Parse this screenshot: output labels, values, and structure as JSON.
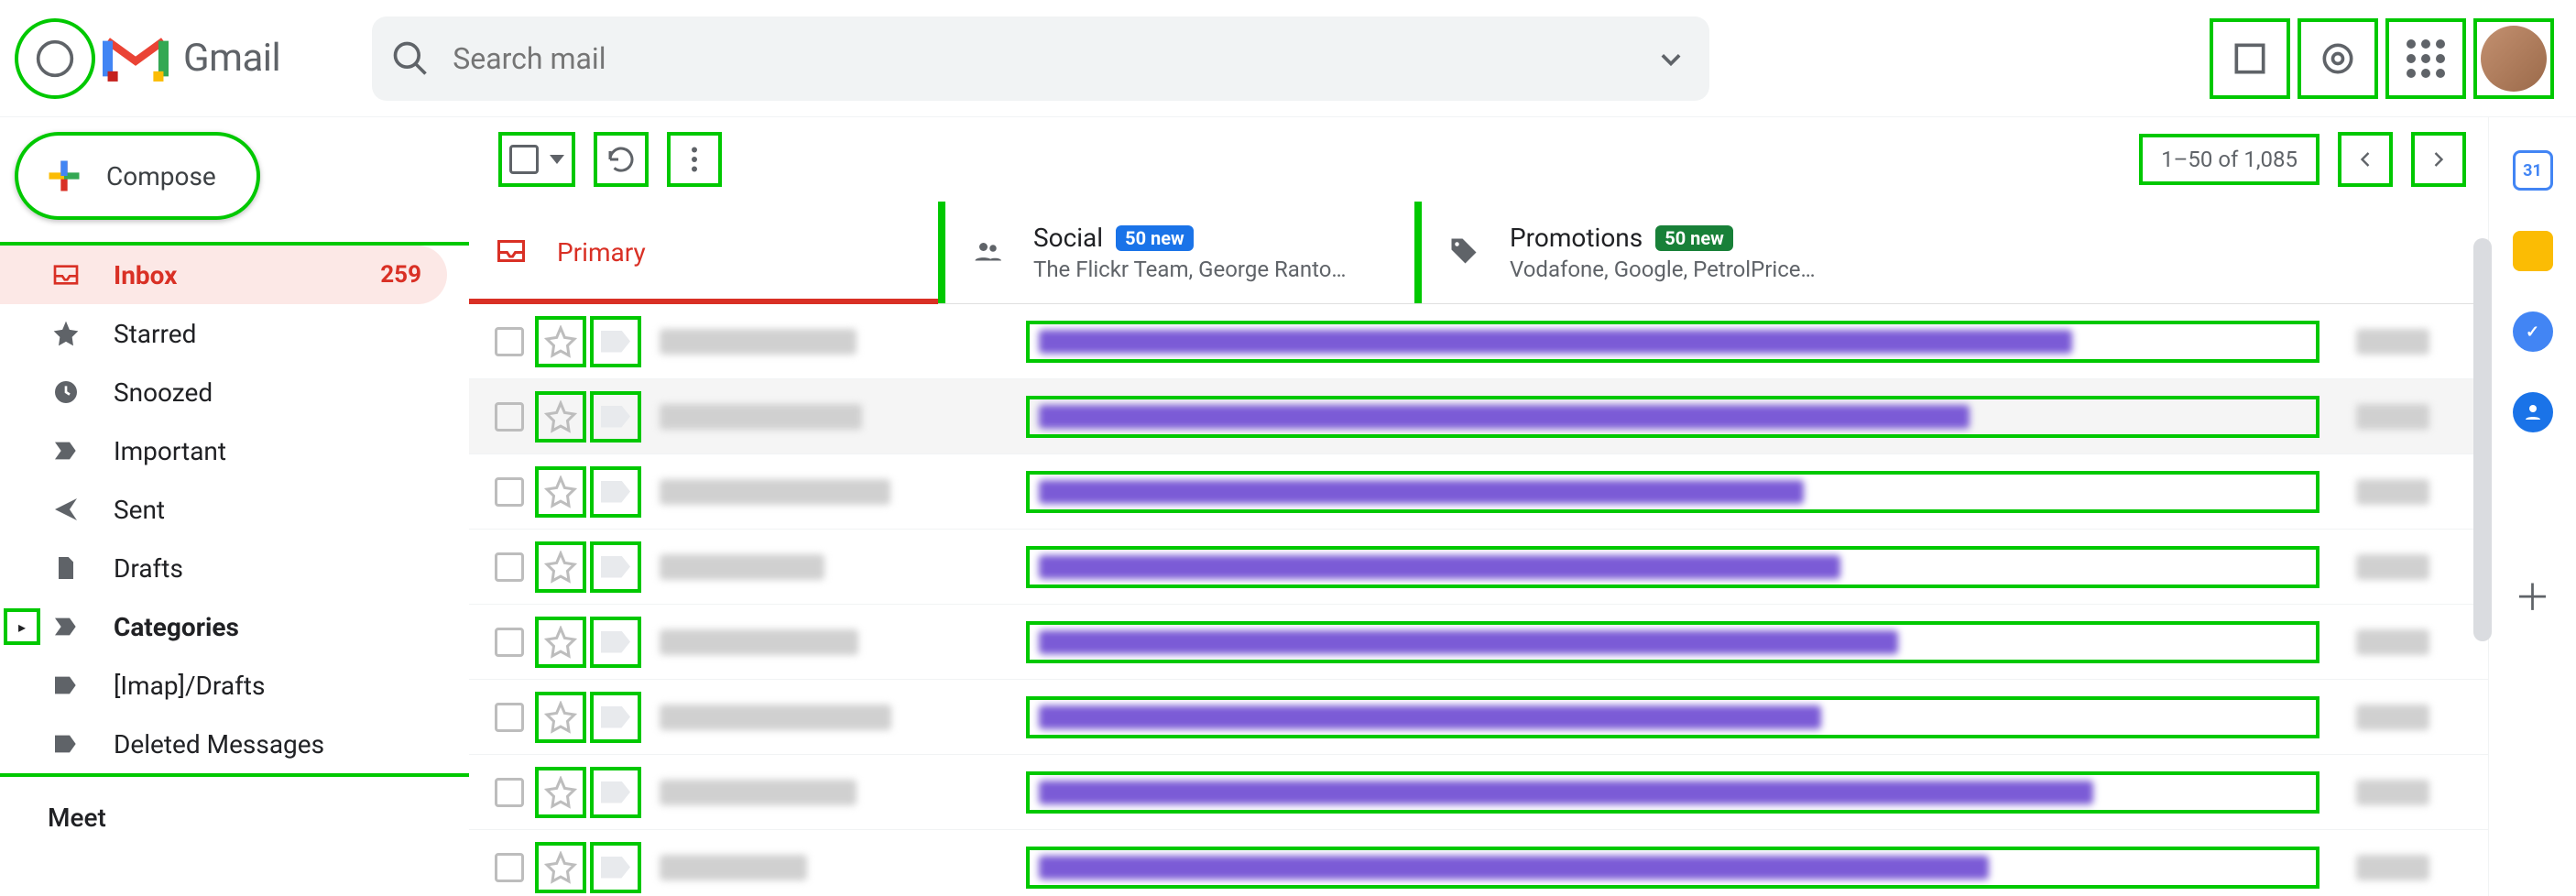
{
  "annotation_color": "#00c800",
  "header": {
    "product": "Gmail",
    "search_placeholder": "Search mail"
  },
  "compose": {
    "label": "Compose"
  },
  "sidebar": {
    "items": [
      {
        "key": "inbox",
        "label": "Inbox",
        "count": "259",
        "active": true,
        "icon": "inbox"
      },
      {
        "key": "starred",
        "label": "Starred",
        "icon": "star"
      },
      {
        "key": "snoozed",
        "label": "Snoozed",
        "icon": "clock"
      },
      {
        "key": "important",
        "label": "Important",
        "icon": "important"
      },
      {
        "key": "sent",
        "label": "Sent",
        "icon": "send"
      },
      {
        "key": "drafts",
        "label": "Drafts",
        "icon": "file"
      },
      {
        "key": "categories",
        "label": "Categories",
        "icon": "important",
        "bold": true,
        "caret": true
      },
      {
        "key": "imap_drafts",
        "label": "[Imap]/Drafts",
        "icon": "label"
      },
      {
        "key": "deleted",
        "label": "Deleted Messages",
        "icon": "label"
      }
    ],
    "meet_label": "Meet"
  },
  "toolbar": {
    "page_info": "1–50 of 1,085"
  },
  "tabs": [
    {
      "key": "primary",
      "title": "Primary",
      "active": true,
      "icon": "inbox"
    },
    {
      "key": "social",
      "title": "Social",
      "badge": "50 new",
      "badge_color": "#1a73e8",
      "sub": "The Flickr Team, George Ranto…",
      "icon": "people"
    },
    {
      "key": "promotions",
      "title": "Promotions",
      "badge": "50 new",
      "badge_color": "#188038",
      "sub": "Vodafone, Google, PetrolPrice…",
      "icon": "tag"
    }
  ],
  "rows": [
    {
      "read": false,
      "subj_color": "#7b5bd6"
    },
    {
      "read": true,
      "subj_color": "#7b5bd6"
    },
    {
      "read": false,
      "subj_color": "#7b5bd6"
    },
    {
      "read": false,
      "subj_color": "#7b5bd6"
    },
    {
      "read": false,
      "subj_color": "#7b5bd6"
    },
    {
      "read": false,
      "subj_color": "#7b5bd6"
    },
    {
      "read": false,
      "subj_color": "#7b5bd6"
    },
    {
      "read": false,
      "subj_color": "#7b5bd6"
    }
  ],
  "sidepanel": {
    "calendar_day": "31"
  }
}
